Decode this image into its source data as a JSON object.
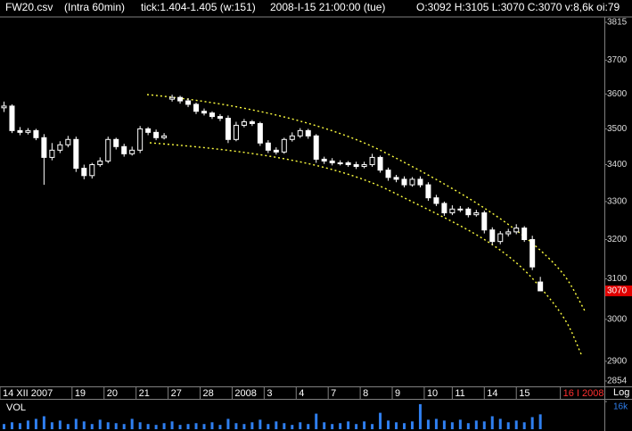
{
  "chart_data": {
    "type": "candlestick",
    "title": "FW20.csv",
    "subtitle": "(Intra 60min)",
    "info": [
      "tick:1.404-1.405 (w:151)",
      "2008-I-15 21:00:00 (tue)",
      "O:3092 H:3105 L:3070 C:3070 v:8,6k oi:79"
    ],
    "log_scale": true,
    "scale_label": "Log",
    "ylim": [
      2854,
      3815
    ],
    "yticks": [
      2854,
      2900,
      3000,
      3100,
      3200,
      3300,
      3400,
      3500,
      3600,
      3700,
      3815
    ],
    "xlim": [
      0,
      151
    ],
    "xticks": [
      {
        "value": 0,
        "label": "14 XII 2007"
      },
      {
        "value": 18,
        "label": "19"
      },
      {
        "value": 26,
        "label": "20"
      },
      {
        "value": 34,
        "label": "21"
      },
      {
        "value": 42,
        "label": "27"
      },
      {
        "value": 50,
        "label": "28"
      },
      {
        "value": 58,
        "label": "2008"
      },
      {
        "value": 66,
        "label": "3"
      },
      {
        "value": 74,
        "label": "4"
      },
      {
        "value": 82,
        "label": "7"
      },
      {
        "value": 90,
        "label": "8"
      },
      {
        "value": 98,
        "label": "9"
      },
      {
        "value": 106,
        "label": "10"
      },
      {
        "value": 113,
        "label": "11"
      },
      {
        "value": 121,
        "label": "14"
      },
      {
        "value": 129,
        "label": "15"
      },
      {
        "value": 140,
        "label": "16 I 2008"
      }
    ],
    "last_price": 3070,
    "color": "#ffffff",
    "x": [
      1,
      3,
      5,
      7,
      9,
      11,
      13,
      15,
      17,
      19,
      21,
      23,
      25,
      27,
      29,
      31,
      33,
      35,
      37,
      39,
      41,
      43,
      45,
      47,
      49,
      51,
      53,
      55,
      57,
      59,
      61,
      63,
      65,
      67,
      69,
      71,
      73,
      75,
      77,
      79,
      81,
      83,
      85,
      87,
      89,
      91,
      93,
      95,
      97,
      99,
      101,
      103,
      105,
      107,
      109,
      111,
      113,
      115,
      117,
      119,
      121,
      123,
      125,
      127,
      129,
      131,
      133,
      135
    ],
    "open": [
      3560,
      3565,
      3495,
      3490,
      3495,
      3475,
      3420,
      3440,
      3455,
      3470,
      3390,
      3370,
      3400,
      3410,
      3470,
      3450,
      3430,
      3440,
      3500,
      3490,
      3475,
      3585,
      3590,
      3580,
      3570,
      3550,
      3545,
      3535,
      3530,
      3470,
      3510,
      3520,
      3515,
      3460,
      3440,
      3435,
      3470,
      3480,
      3495,
      3480,
      3415,
      3410,
      3405,
      3405,
      3400,
      3395,
      3400,
      3420,
      3385,
      3365,
      3360,
      3345,
      3360,
      3345,
      3310,
      3295,
      3270,
      3280,
      3280,
      3265,
      3270,
      3225,
      3195,
      3215,
      3220,
      3230,
      3200,
      3092
    ],
    "high": [
      3578,
      3570,
      3505,
      3502,
      3500,
      3485,
      3460,
      3465,
      3480,
      3478,
      3400,
      3405,
      3420,
      3478,
      3475,
      3458,
      3450,
      3508,
      3505,
      3498,
      3488,
      3598,
      3595,
      3588,
      3575,
      3558,
      3550,
      3542,
      3538,
      3520,
      3528,
      3525,
      3520,
      3468,
      3448,
      3475,
      3490,
      3502,
      3500,
      3485,
      3422,
      3418,
      3412,
      3410,
      3408,
      3408,
      3430,
      3425,
      3392,
      3372,
      3368,
      3366,
      3368,
      3352,
      3318,
      3300,
      3290,
      3288,
      3285,
      3278,
      3276,
      3232,
      3222,
      3228,
      3240,
      3235,
      3210,
      3105
    ],
    "low": [
      3548,
      3488,
      3482,
      3484,
      3468,
      3345,
      3412,
      3432,
      3448,
      3380,
      3360,
      3362,
      3394,
      3404,
      3442,
      3422,
      3425,
      3432,
      3482,
      3468,
      3470,
      3578,
      3572,
      3562,
      3542,
      3538,
      3528,
      3522,
      3460,
      3465,
      3504,
      3508,
      3452,
      3432,
      3428,
      3430,
      3464,
      3474,
      3472,
      3405,
      3402,
      3398,
      3398,
      3394,
      3388,
      3390,
      3394,
      3378,
      3356,
      3352,
      3338,
      3340,
      3338,
      3302,
      3288,
      3262,
      3264,
      3272,
      3258,
      3260,
      3216,
      3186,
      3188,
      3208,
      3214,
      3194,
      3122,
      3070
    ],
    "close": [
      3565,
      3495,
      3490,
      3495,
      3475,
      3420,
      3440,
      3455,
      3470,
      3390,
      3370,
      3400,
      3410,
      3470,
      3450,
      3430,
      3440,
      3500,
      3490,
      3475,
      3480,
      3590,
      3580,
      3570,
      3550,
      3545,
      3535,
      3530,
      3470,
      3510,
      3520,
      3515,
      3460,
      3440,
      3435,
      3470,
      3480,
      3495,
      3480,
      3415,
      3410,
      3405,
      3405,
      3400,
      3395,
      3400,
      3420,
      3385,
      3365,
      3360,
      3345,
      3360,
      3345,
      3310,
      3295,
      3270,
      3280,
      3280,
      3265,
      3270,
      3225,
      3195,
      3215,
      3220,
      3230,
      3200,
      3130,
      3070
    ],
    "volume": {
      "name": "VOL",
      "color": "#2f7fef",
      "ylim": [
        0,
        16000
      ],
      "yticks": [
        {
          "value": 16000,
          "label": "16k"
        }
      ],
      "values": [
        3000,
        4000,
        3500,
        5000,
        6000,
        7500,
        4000,
        5000,
        3000,
        6000,
        4500,
        3000,
        5500,
        4000,
        3500,
        3000,
        6000,
        4000,
        3000,
        2500,
        3500,
        4500,
        2500,
        3000,
        3500,
        3000,
        4000,
        2500,
        6000,
        3500,
        3000,
        4000,
        5500,
        3000,
        4500,
        3500,
        2500,
        4000,
        3000,
        9000,
        4000,
        3000,
        3500,
        4500,
        3000,
        4500,
        3000,
        9500,
        5000,
        4000,
        3500,
        4500,
        14500,
        5500,
        6000,
        5000,
        4000,
        5500,
        3500,
        5000,
        4500,
        7500,
        6000,
        4000,
        5000,
        4000,
        7000,
        8600
      ]
    }
  }
}
